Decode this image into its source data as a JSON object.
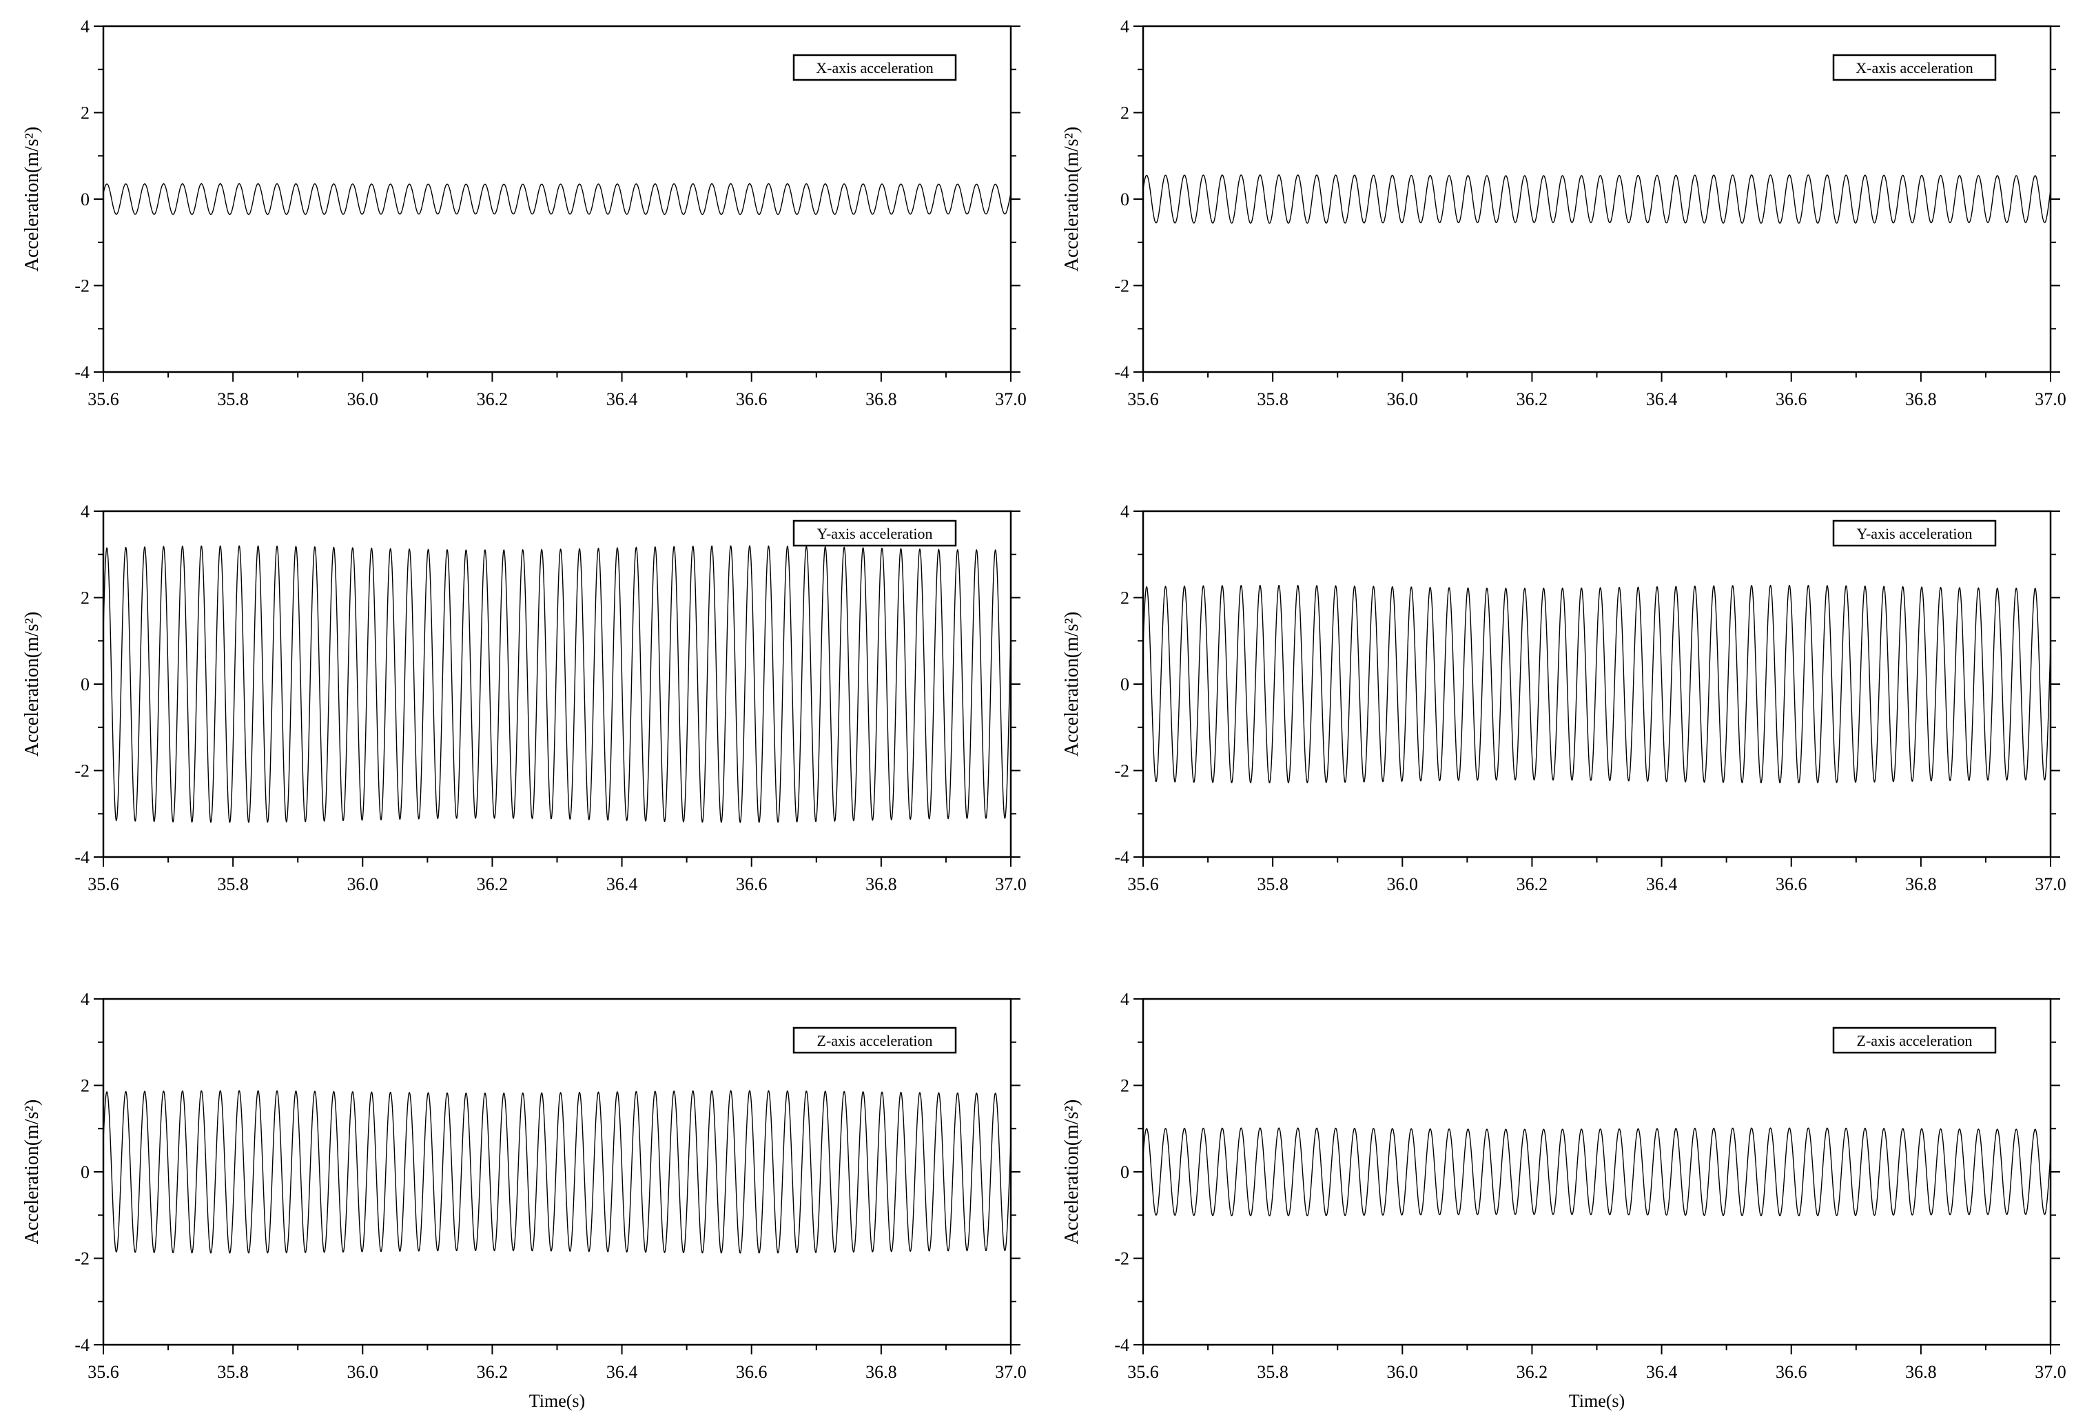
{
  "chart_data": [
    {
      "type": "line",
      "panel": "top-left",
      "legend": "X-axis acceleration",
      "legend_position": "top-right",
      "xlabel": "",
      "ylabel": "Acceleration(m/s²)",
      "xlim": [
        35.6,
        37.0
      ],
      "ylim": [
        -4,
        4
      ],
      "xticks": [
        "35.6",
        "35.8",
        "36.0",
        "36.2",
        "36.4",
        "36.6",
        "36.8",
        "37.0"
      ],
      "yticks": [
        "-4",
        "-2",
        "0",
        "2",
        "4"
      ],
      "grid": false,
      "series": [
        {
          "name": "X-axis acceleration",
          "amplitude": 0.35,
          "cycles": 48,
          "x_start": 35.6,
          "x_end": 37.0
        }
      ]
    },
    {
      "type": "line",
      "panel": "top-right",
      "legend": "X-axis acceleration",
      "legend_position": "top-right",
      "xlabel": "",
      "ylabel": "Acceleration(m/s²)",
      "xlim": [
        35.6,
        37.0
      ],
      "ylim": [
        -4,
        4
      ],
      "xticks": [
        "35.6",
        "35.8",
        "36.0",
        "36.2",
        "36.4",
        "36.6",
        "36.8",
        "37.0"
      ],
      "yticks": [
        "-4",
        "-2",
        "0",
        "2",
        "4"
      ],
      "grid": false,
      "series": [
        {
          "name": "X-axis acceleration",
          "amplitude": 0.55,
          "cycles": 48,
          "x_start": 35.6,
          "x_end": 37.0
        }
      ]
    },
    {
      "type": "line",
      "panel": "middle-left",
      "legend": "Y-axis acceleration",
      "legend_position": "top-right",
      "xlabel": "",
      "ylabel": "Acceleration(m/s²)",
      "xlim": [
        35.6,
        37.0
      ],
      "ylim": [
        -4,
        4
      ],
      "xticks": [
        "35.6",
        "35.8",
        "36.0",
        "36.2",
        "36.4",
        "36.6",
        "36.8",
        "37.0"
      ],
      "yticks": [
        "-4",
        "-2",
        "0",
        "2",
        "4"
      ],
      "grid": false,
      "series": [
        {
          "name": "Y-axis acceleration",
          "amplitude": 3.15,
          "cycles": 48,
          "x_start": 35.6,
          "x_end": 37.0
        }
      ]
    },
    {
      "type": "line",
      "panel": "middle-right",
      "legend": "Y-axis acceleration",
      "legend_position": "top-right",
      "xlabel": "",
      "ylabel": "Acceleration(m/s²)",
      "xlim": [
        35.6,
        37.0
      ],
      "ylim": [
        -4,
        4
      ],
      "xticks": [
        "35.6",
        "35.8",
        "36.0",
        "36.2",
        "36.4",
        "36.6",
        "36.8",
        "37.0"
      ],
      "yticks": [
        "-4",
        "-2",
        "0",
        "2",
        "4"
      ],
      "grid": false,
      "series": [
        {
          "name": "Y-axis acceleration",
          "amplitude": 2.25,
          "cycles": 48,
          "x_start": 35.6,
          "x_end": 37.0
        }
      ]
    },
    {
      "type": "line",
      "panel": "bottom-left",
      "legend": "Z-axis acceleration",
      "legend_position": "top-right",
      "xlabel": "Time(s)",
      "ylabel": "Acceleration(m/s²)",
      "xlim": [
        35.6,
        37.0
      ],
      "ylim": [
        -4,
        4
      ],
      "xticks": [
        "35.6",
        "35.8",
        "36.0",
        "36.2",
        "36.4",
        "36.6",
        "36.8",
        "37.0"
      ],
      "yticks": [
        "-4",
        "-2",
        "0",
        "2",
        "4"
      ],
      "grid": false,
      "series": [
        {
          "name": "Z-axis acceleration",
          "amplitude": 1.85,
          "cycles": 48,
          "x_start": 35.6,
          "x_end": 37.0
        }
      ]
    },
    {
      "type": "line",
      "panel": "bottom-right",
      "legend": "Z-axis acceleration",
      "legend_position": "top-right",
      "xlabel": "Time(s)",
      "ylabel": "Acceleration(m/s²)",
      "xlim": [
        35.6,
        37.0
      ],
      "ylim": [
        -4,
        4
      ],
      "xticks": [
        "35.6",
        "35.8",
        "36.0",
        "36.2",
        "36.4",
        "36.6",
        "36.8",
        "37.0"
      ],
      "yticks": [
        "-4",
        "-2",
        "0",
        "2",
        "4"
      ],
      "grid": false,
      "series": [
        {
          "name": "Z-axis acceleration",
          "amplitude": 1.0,
          "cycles": 48,
          "x_start": 35.6,
          "x_end": 37.0
        }
      ]
    }
  ],
  "colors": {
    "line": "#000000",
    "background": "#ffffff"
  }
}
